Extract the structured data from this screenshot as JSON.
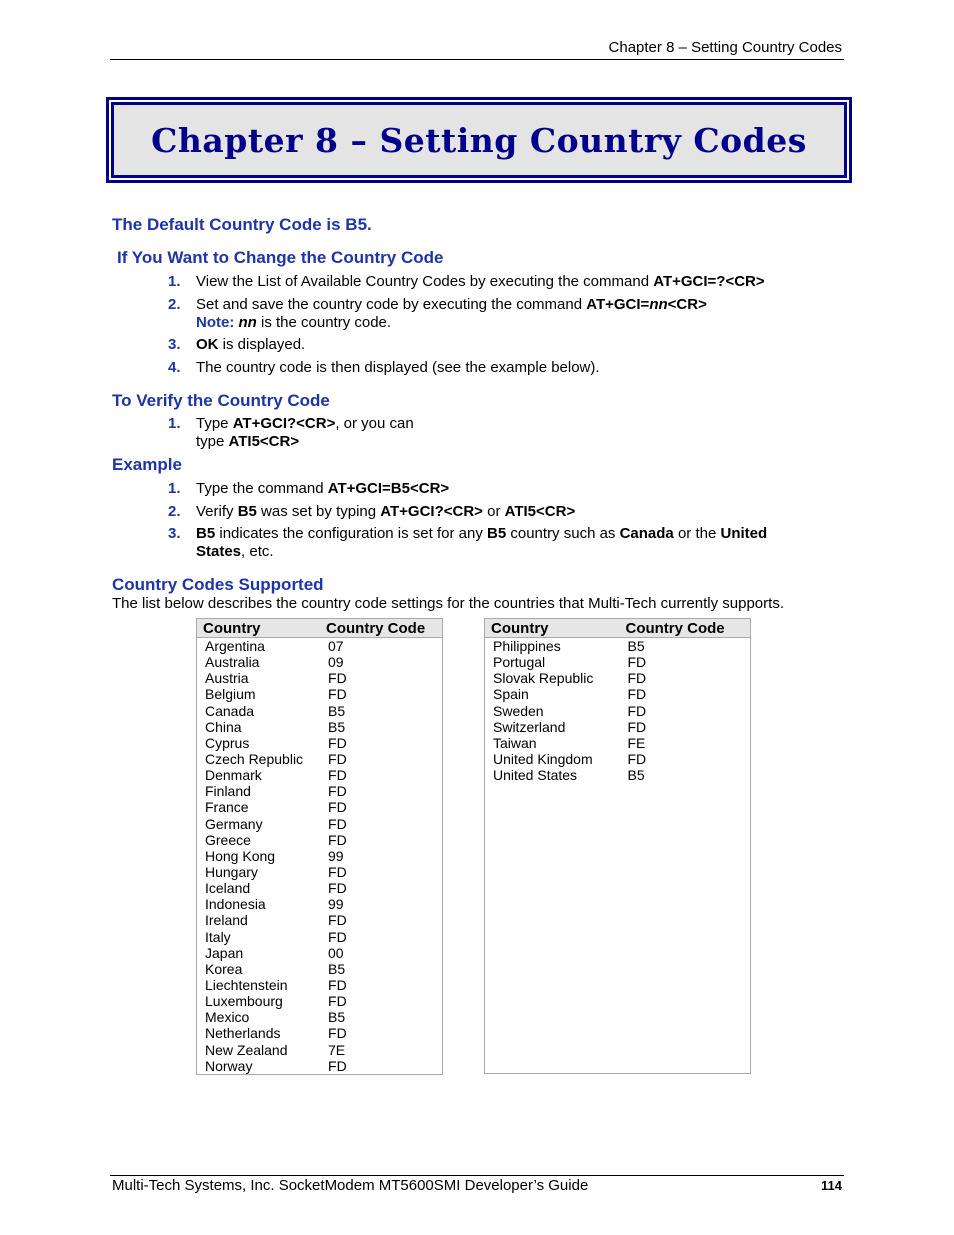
{
  "running_header": "Chapter 8 – Setting Country Codes",
  "chapter_title": "Chapter 8 – Setting Country Codes",
  "default_heading": "The Default Country Code is B5.",
  "change": {
    "heading": "If You Want to Change the Country Code",
    "items": [
      {
        "n": "1.",
        "segs": [
          {
            "t": "View the List of Available Country Codes by executing the command "
          },
          {
            "t": "AT+GCI=?<CR>",
            "b": true
          }
        ]
      },
      {
        "n": "2.",
        "segs": [
          {
            "t": "Set and save the country code by executing the command "
          },
          {
            "t": "AT+GCI=",
            "b": true
          },
          {
            "t": "nn",
            "b": true,
            "i": true
          },
          {
            "t": "<CR>",
            "b": true
          }
        ]
      },
      {
        "n": "",
        "segs": [
          {
            "t": "Note: ",
            "note": true
          },
          {
            "t": "nn",
            "b": true,
            "i": true
          },
          {
            "t": " is the country code."
          }
        ]
      },
      {
        "n": "3.",
        "segs": [
          {
            "t": "OK",
            "b": true
          },
          {
            "t": " is displayed."
          }
        ]
      },
      {
        "n": "4.",
        "segs": [
          {
            "t": "The country code is then displayed (see the example below)."
          }
        ]
      }
    ]
  },
  "verify": {
    "heading": "To Verify the Country Code",
    "items": [
      {
        "n": "1.",
        "segs": [
          {
            "t": "Type "
          },
          {
            "t": "AT+GCI?<CR>",
            "b": true
          },
          {
            "t": ", or you can"
          }
        ]
      },
      {
        "n": "",
        "segs": [
          {
            "t": "type "
          },
          {
            "t": "ATI5<CR>",
            "b": true
          }
        ]
      }
    ]
  },
  "example": {
    "heading": "Example",
    "items": [
      {
        "n": "1.",
        "segs": [
          {
            "t": "Type the command "
          },
          {
            "t": "AT+GCI=B5<CR>",
            "b": true
          }
        ]
      },
      {
        "n": "2.",
        "segs": [
          {
            "t": "Verify "
          },
          {
            "t": "B5",
            "b": true
          },
          {
            "t": " was set by typing "
          },
          {
            "t": "AT+GCI?<CR>",
            "b": true
          },
          {
            "t": " or  "
          },
          {
            "t": "ATI5<CR>",
            "b": true
          }
        ]
      },
      {
        "n": "3.",
        "segs": [
          {
            "t": "B5",
            "b": true
          },
          {
            "t": " indicates the configuration is set for any "
          },
          {
            "t": "B5",
            "b": true
          },
          {
            "t": " country such as "
          },
          {
            "t": "Canada",
            "b": true
          },
          {
            "t": " or the "
          },
          {
            "t": "United",
            "b": true
          }
        ]
      },
      {
        "n": "",
        "segs": [
          {
            "t": "States",
            "b": true
          },
          {
            "t": ", etc."
          }
        ]
      }
    ]
  },
  "supported": {
    "heading": "Country Codes Supported",
    "intro": "The list below describes the country code settings for the countries that Multi-Tech currently supports."
  },
  "table_headers": [
    "Country",
    "Country Code"
  ],
  "table_left": [
    [
      "Argentina",
      "07"
    ],
    [
      "Australia",
      "09"
    ],
    [
      "Austria",
      "FD"
    ],
    [
      "Belgium",
      "FD"
    ],
    [
      "Canada",
      "B5"
    ],
    [
      "China",
      "B5"
    ],
    [
      "Cyprus",
      "FD"
    ],
    [
      "Czech Republic",
      "FD"
    ],
    [
      "Denmark",
      "FD"
    ],
    [
      "Finland",
      "FD"
    ],
    [
      "France",
      "FD"
    ],
    [
      "Germany",
      "FD"
    ],
    [
      "Greece",
      "FD"
    ],
    [
      "Hong Kong",
      "99"
    ],
    [
      "Hungary",
      "FD"
    ],
    [
      "Iceland",
      "FD"
    ],
    [
      "Indonesia",
      "99"
    ],
    [
      "Ireland",
      "FD"
    ],
    [
      "Italy",
      "FD"
    ],
    [
      "Japan",
      "00"
    ],
    [
      "Korea",
      "B5"
    ],
    [
      "Liechtenstein",
      "FD"
    ],
    [
      "Luxembourg",
      "FD"
    ],
    [
      "Mexico",
      "B5"
    ],
    [
      "Netherlands",
      "FD"
    ],
    [
      "New Zealand",
      "7E"
    ],
    [
      "Norway",
      "FD"
    ]
  ],
  "table_right": [
    [
      "Philippines",
      "B5"
    ],
    [
      "Portugal",
      "FD"
    ],
    [
      "Slovak Republic",
      "FD"
    ],
    [
      "Spain",
      "FD"
    ],
    [
      "Sweden",
      "FD"
    ],
    [
      "Switzerland",
      "FD"
    ],
    [
      "Taiwan",
      "FE"
    ],
    [
      "United Kingdom",
      "FD"
    ],
    [
      "United States",
      "B5"
    ]
  ],
  "footer": {
    "text": "Multi-Tech Systems, Inc. SocketModem MT5600SMI Developer’s Guide",
    "page": "114"
  }
}
